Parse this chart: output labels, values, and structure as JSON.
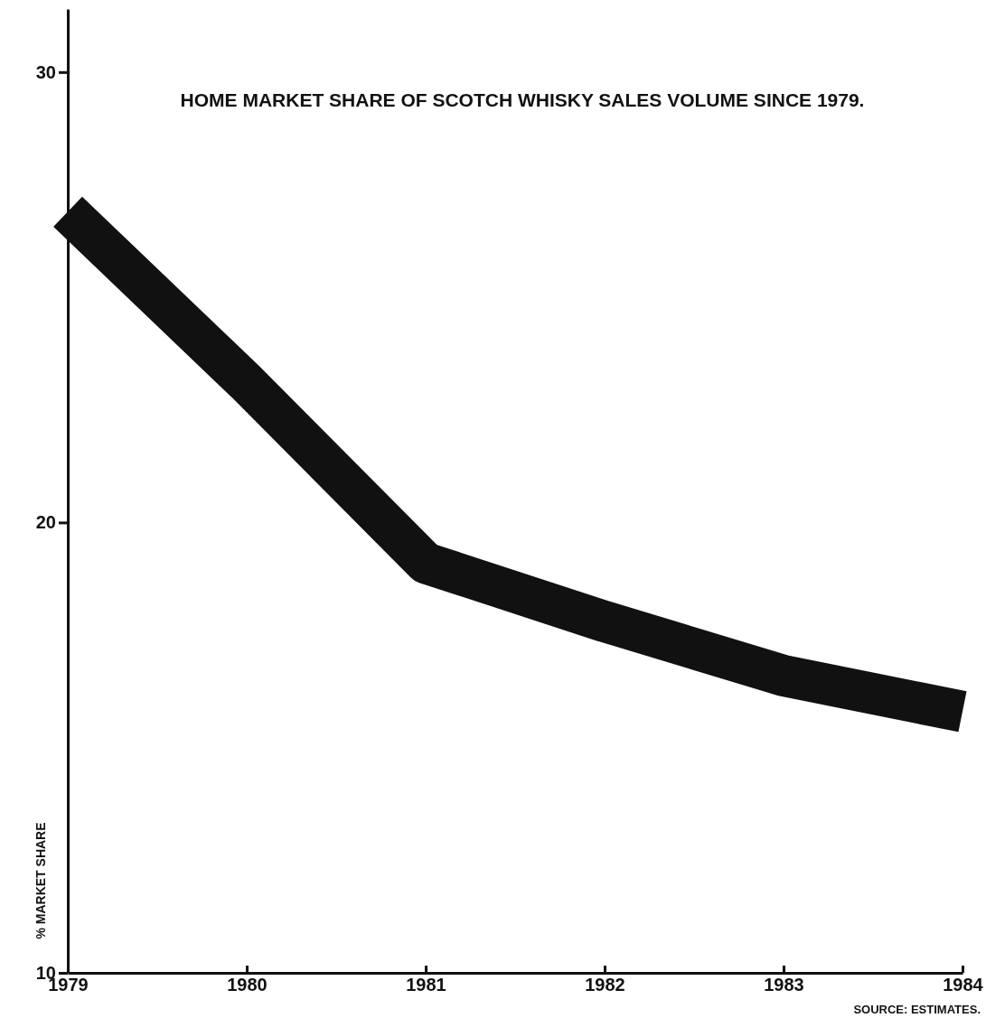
{
  "chart_data": {
    "type": "line",
    "subtitle": "HOME MARKET SHARE OF SCOTCH WHISKY SALES VOLUME SINCE 1979.",
    "ylabel": "% MARKET SHARE",
    "annotations": [
      "SOURCE: ESTIMATES."
    ],
    "x": [
      1979,
      1980,
      1981,
      1982,
      1983,
      1984
    ],
    "series": [
      {
        "color": "#111111",
        "values": [
          26.9,
          23.1,
          19.1,
          17.8,
          16.6,
          15.8
        ]
      }
    ],
    "xlim": [
      1979,
      1984
    ],
    "xticks": [
      1979,
      1980,
      1981,
      1982,
      1983,
      1984
    ],
    "ylim": [
      10,
      31.4
    ],
    "yticks": [
      10,
      20,
      30
    ],
    "grid": false,
    "marker": "none",
    "line_style": "solid"
  }
}
